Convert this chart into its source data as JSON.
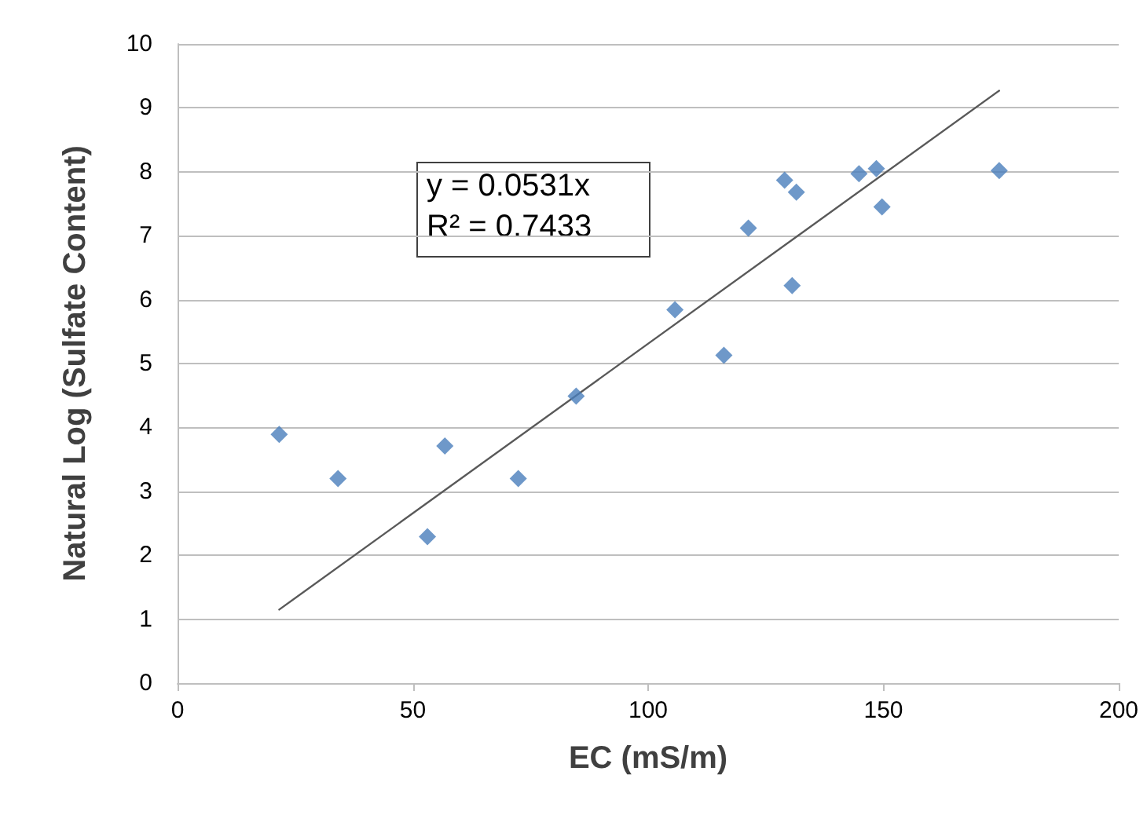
{
  "chart_data": {
    "type": "scatter",
    "xlabel": "EC (mS/m)",
    "ylabel": "Natural Log (Sulfate Content)",
    "xlim": [
      0,
      200
    ],
    "xticks": [
      0,
      50,
      100,
      150,
      200
    ],
    "ylim": [
      0,
      10
    ],
    "yticks": [
      0,
      1,
      2,
      3,
      4,
      5,
      6,
      7,
      8,
      9,
      10
    ],
    "grid": "y",
    "marker": "diamond",
    "annotations": [
      "y = 0.0531x",
      "R² = 0.7433"
    ],
    "series": [
      {
        "type": "scatter",
        "color": "#4a7ebb",
        "x": [
          21.6,
          34.1,
          53.1,
          56.8,
          72.4,
          84.7,
          105.7,
          116.1,
          121.3,
          129.0,
          131.5,
          130.6,
          144.8,
          148.5,
          149.7,
          174.6
        ],
        "values": [
          3.89,
          3.2,
          2.29,
          3.71,
          3.2,
          4.49,
          5.84,
          5.13,
          7.12,
          7.87,
          7.68,
          6.22,
          7.97,
          8.05,
          7.45,
          8.02
        ]
      },
      {
        "type": "line",
        "color": "#595959",
        "marker": "none",
        "line_style": "solid",
        "x": [
          21.6,
          174.6
        ],
        "values": [
          1.15,
          9.27
        ]
      }
    ]
  }
}
